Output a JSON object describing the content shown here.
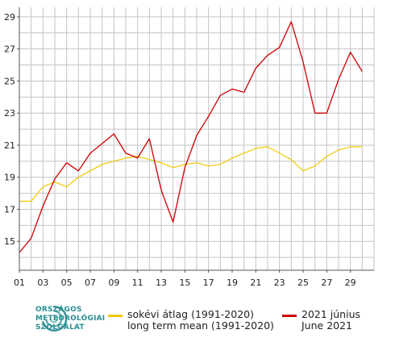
{
  "chart_data": {
    "type": "line",
    "x": [
      1,
      2,
      3,
      4,
      5,
      6,
      7,
      8,
      9,
      10,
      11,
      12,
      13,
      14,
      15,
      16,
      17,
      18,
      19,
      20,
      21,
      22,
      23,
      24,
      25,
      26,
      27,
      28,
      29,
      30
    ],
    "xticks": [
      "01",
      "03",
      "05",
      "07",
      "09",
      "11",
      "13",
      "15",
      "17",
      "19",
      "21",
      "23",
      "25",
      "27",
      "29"
    ],
    "yticks": [
      "15",
      "17",
      "19",
      "21",
      "23",
      "25",
      "27",
      "29"
    ],
    "xlim": [
      1,
      31
    ],
    "ylim": [
      13.2,
      29.6
    ],
    "grid": true,
    "legend_position": "bottom",
    "series": [
      {
        "name_line1": "sokévi átlag (1991-2020)",
        "name_line2": "long term mean (1991-2020)",
        "color": "#f0c800",
        "values": [
          17.5,
          17.5,
          18.4,
          18.7,
          18.4,
          19.0,
          19.4,
          19.8,
          20.0,
          20.2,
          20.3,
          20.1,
          19.9,
          19.6,
          19.8,
          19.9,
          19.7,
          19.8,
          20.2,
          20.5,
          20.8,
          20.9,
          20.5,
          20.1,
          19.4,
          19.7,
          20.3,
          20.7,
          20.9,
          20.9
        ]
      },
      {
        "name_line1": "2021 június",
        "name_line2": "June 2021",
        "color": "#cc0000",
        "values": [
          14.3,
          15.2,
          17.2,
          18.9,
          19.9,
          19.4,
          20.5,
          21.1,
          21.7,
          20.5,
          20.2,
          21.4,
          18.2,
          16.2,
          19.6,
          21.6,
          22.8,
          24.1,
          24.5,
          24.3,
          25.8,
          26.6,
          27.1,
          28.7,
          26.2,
          23.0,
          23.0,
          25.1,
          26.8,
          25.6
        ]
      }
    ]
  },
  "logo": {
    "line1": "ORSZÁGOS",
    "line2": "METEOROLÓGIAI",
    "line3": "SZOLGÁLAT",
    "color": "#2a8e93"
  }
}
